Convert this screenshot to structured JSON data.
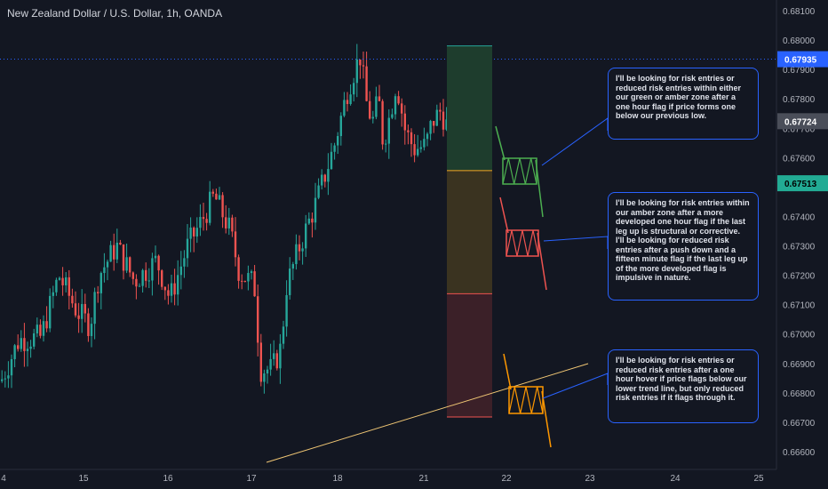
{
  "chart_title": "New Zealand Dollar / U.S. Dollar, 1h, OANDA",
  "chart_data": {
    "type": "candlestick",
    "symbol": "New Zealand Dollar / U.S. Dollar",
    "interval": "1h",
    "source": "OANDA",
    "y_ticks": [
      "0.68100",
      "0.68000",
      "0.67900",
      "0.67800",
      "0.67700",
      "0.67600",
      "0.67500",
      "0.67400",
      "0.67300",
      "0.67200",
      "0.67100",
      "0.67000",
      "0.66900",
      "0.66800",
      "0.66700",
      "0.66600"
    ],
    "ylim": [
      0.6654,
      0.6815
    ],
    "x_ticks": [
      "4",
      "15",
      "16",
      "17",
      "18",
      "21",
      "22",
      "23",
      "24",
      "25"
    ],
    "price_labels": [
      {
        "value": "0.67935",
        "color": "#2962ff",
        "text_color": "#ffffff"
      },
      {
        "value": "0.67724",
        "color": "#4a4e59",
        "text_color": "#ffffff"
      },
      {
        "value": "0.67513",
        "color": "#22ab94",
        "text_color": "#000000"
      }
    ],
    "zones": [
      {
        "name": "green zone",
        "top": 0.6798,
        "bottom": 0.67556,
        "color": "#1e3d2d",
        "edge": "#26a69a"
      },
      {
        "name": "amber zone",
        "top": 0.67556,
        "bottom": 0.67137,
        "color": "#3a3320",
        "edge": "#f5a623"
      },
      {
        "name": "red zone",
        "top": 0.67137,
        "bottom": 0.66718,
        "color": "#3b2028",
        "edge": "#ef5350"
      }
    ],
    "trend_line": {
      "from": [
        0.35,
        0.6657
      ],
      "to": [
        0.71,
        0.66893
      ],
      "color": "#f0c674"
    },
    "bull_color": "#26a69a",
    "bear_color": "#ef5350",
    "candles": []
  },
  "notes": [
    {
      "text": "I'll be looking for risk entries or reduced risk entries within either our green or amber zone after a one hour flag if price forms one below our previous low."
    },
    {
      "text": "I'll be looking for risk entries within our amber zone after a more developed one hour flag if the last leg up is structural or corrective. I'll be looking for reduced risk entries after a push down and a fifteen minute flag if the last leg up of the more developed flag is impulsive in nature."
    },
    {
      "text": "I'll be looking for risk entries or reduced risk entries after a one hour hover if price flags below our lower trend line, but only reduced risk entries if it flags through it."
    }
  ]
}
